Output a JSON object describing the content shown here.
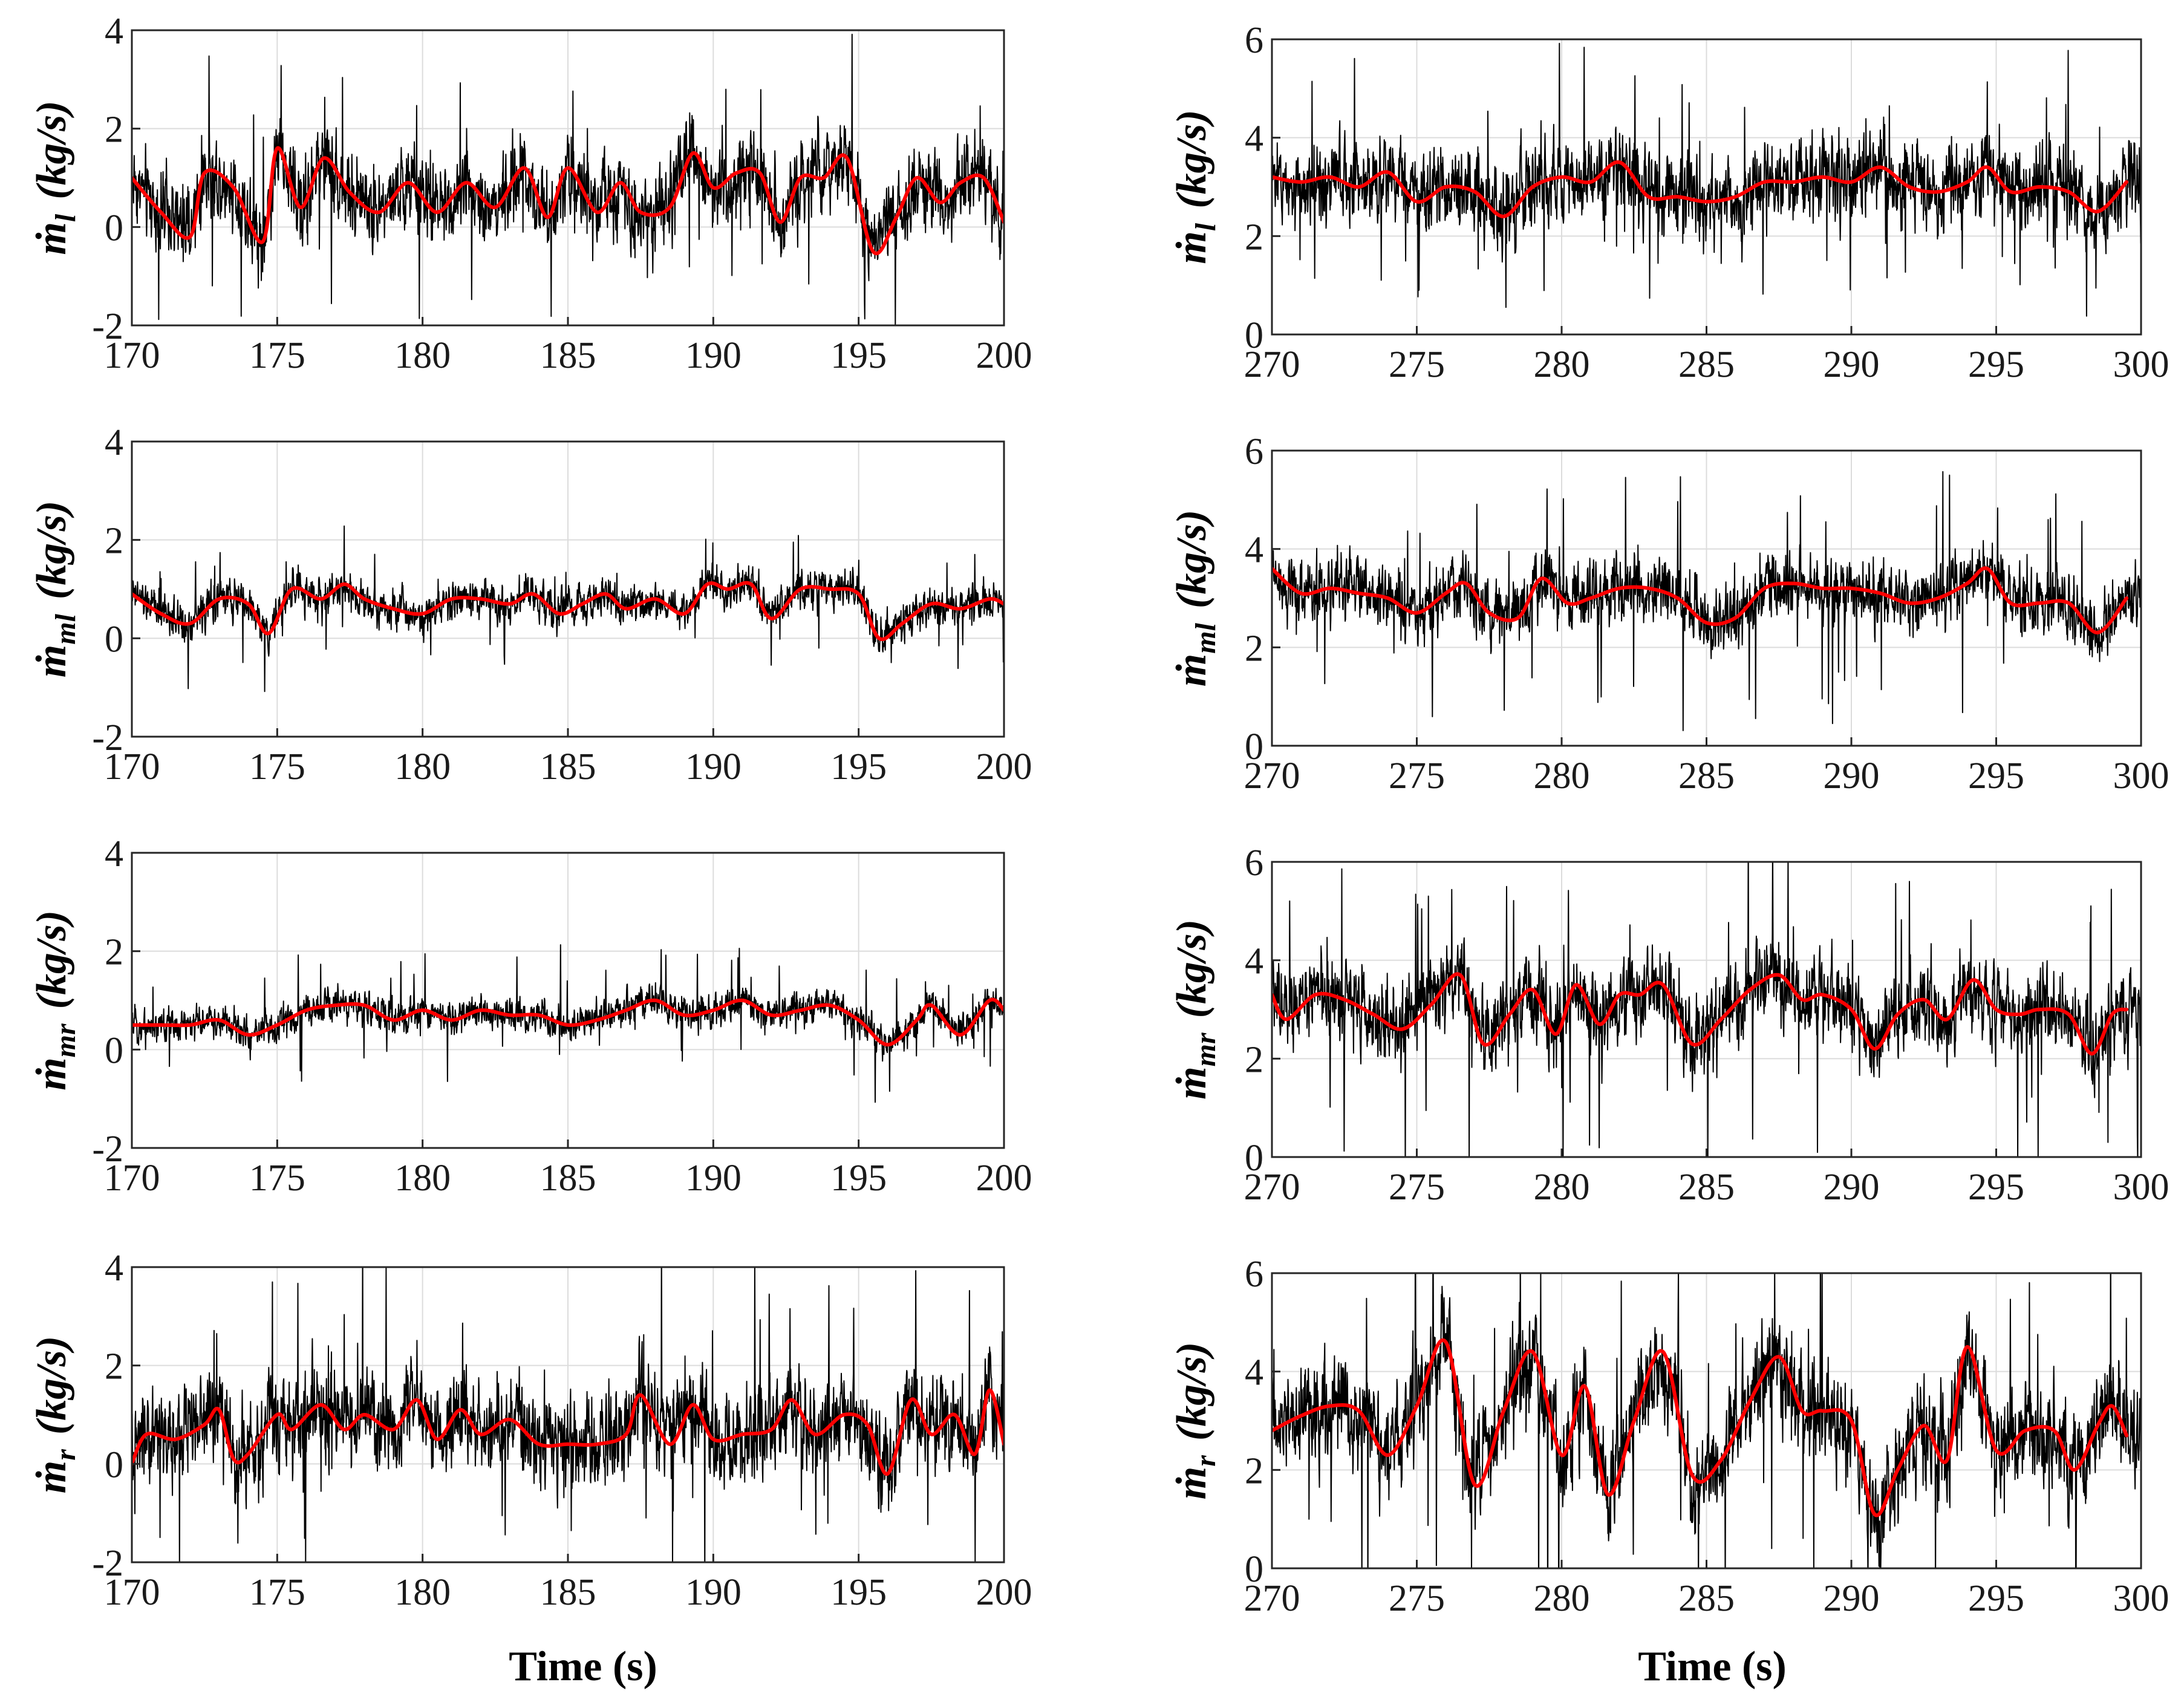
{
  "figure": {
    "xlabel_left": "Time (s)",
    "xlabel_right": "Time (s)"
  },
  "colors": {
    "raw": "#000000",
    "filtered": "#ff0000",
    "grid": "#dcdcdc"
  },
  "chart_data": [
    {
      "type": "line",
      "title": "",
      "ylabel_symbol": "ṁ",
      "ylabel_sub": "l",
      "ylabel_unit": "(kg/s)",
      "xlim": [
        170,
        200
      ],
      "ylim": [
        -2,
        4
      ],
      "xticks": [
        170,
        175,
        180,
        185,
        190,
        195,
        200
      ],
      "yticks": [
        -2,
        0,
        2,
        4
      ],
      "xlabel": "",
      "grid": true,
      "series": [
        {
          "name": "raw",
          "color": "#000000",
          "mean": 0.55,
          "noise": 0.75,
          "spikes": 0.9
        },
        {
          "name": "filtered",
          "color": "#ff0000",
          "x": [
            170,
            171,
            172,
            172.5,
            173.5,
            174.5,
            175,
            175.8,
            176.6,
            177.5,
            178.5,
            179.5,
            180.5,
            181.5,
            182.5,
            183.5,
            184.3,
            185,
            186,
            186.8,
            187.5,
            188.5,
            189.3,
            190,
            190.8,
            191.6,
            192.3,
            193,
            193.8,
            194.6,
            195.5,
            196.3,
            197,
            197.8,
            198.5,
            199.3,
            200
          ],
          "y": [
            1.0,
            0.3,
            -0.2,
            1.1,
            0.8,
            -0.3,
            1.6,
            0.4,
            1.4,
            0.7,
            0.3,
            0.9,
            0.3,
            0.9,
            0.4,
            1.2,
            0.2,
            1.2,
            0.3,
            0.9,
            0.3,
            0.4,
            1.5,
            0.8,
            1.1,
            1.1,
            0.1,
            1.0,
            1.0,
            1.4,
            -0.5,
            0.2,
            1.0,
            0.5,
            0.9,
            1.0,
            0.1
          ]
        }
      ]
    },
    {
      "type": "line",
      "title": "",
      "ylabel_symbol": "ṁ",
      "ylabel_sub": "ml",
      "ylabel_unit": "(kg/s)",
      "xlim": [
        170,
        200
      ],
      "ylim": [
        -2,
        4
      ],
      "xticks": [
        170,
        175,
        180,
        185,
        190,
        195,
        200
      ],
      "yticks": [
        -2,
        0,
        2,
        4
      ],
      "xlabel": "",
      "grid": true,
      "series": [
        {
          "name": "raw",
          "color": "#000000",
          "mean": 0.65,
          "noise": 0.35,
          "spikes": 0.5
        },
        {
          "name": "filtered",
          "color": "#ff0000",
          "x": [
            170,
            171,
            172,
            173,
            174,
            174.7,
            175.5,
            176.5,
            177.3,
            178,
            179,
            180,
            181,
            182,
            183,
            183.8,
            184.7,
            185.5,
            186.3,
            187,
            188,
            189,
            189.8,
            190.5,
            191.3,
            192,
            193,
            194,
            195,
            195.7,
            196.5,
            197.5,
            198.5,
            199.5,
            200
          ],
          "y": [
            0.9,
            0.5,
            0.3,
            0.8,
            0.7,
            0.1,
            1.0,
            0.8,
            1.1,
            0.8,
            0.6,
            0.5,
            0.8,
            0.8,
            0.7,
            0.9,
            0.5,
            0.7,
            0.9,
            0.6,
            0.8,
            0.5,
            1.1,
            1.0,
            1.1,
            0.4,
            1.0,
            1.0,
            0.9,
            0.0,
            0.3,
            0.7,
            0.6,
            0.8,
            0.7
          ]
        }
      ]
    },
    {
      "type": "line",
      "title": "",
      "ylabel_symbol": "ṁ",
      "ylabel_sub": "mr",
      "ylabel_unit": "(kg/s)",
      "xlim": [
        170,
        200
      ],
      "ylim": [
        -2,
        4
      ],
      "xticks": [
        170,
        175,
        180,
        185,
        190,
        195,
        200
      ],
      "yticks": [
        -2,
        0,
        2,
        4
      ],
      "xlabel": "",
      "grid": true,
      "series": [
        {
          "name": "raw",
          "color": "#000000",
          "mean": 0.65,
          "noise": 0.3,
          "spikes": 0.5
        },
        {
          "name": "filtered",
          "color": "#ff0000",
          "x": [
            170,
            171,
            172,
            173,
            174,
            175,
            176,
            177,
            178,
            179,
            180,
            181,
            182,
            183,
            184,
            185,
            186,
            187,
            188,
            189,
            190,
            191,
            192,
            193,
            194,
            195,
            196,
            197,
            197.5,
            198.5,
            199.5,
            200
          ],
          "y": [
            0.5,
            0.5,
            0.5,
            0.6,
            0.3,
            0.5,
            0.8,
            0.9,
            0.9,
            0.6,
            0.8,
            0.6,
            0.8,
            0.7,
            0.7,
            0.5,
            0.6,
            0.8,
            1.0,
            0.7,
            0.8,
            1.0,
            0.7,
            0.8,
            0.9,
            0.6,
            0.1,
            0.6,
            0.9,
            0.3,
            1.0,
            0.8
          ]
        }
      ]
    },
    {
      "type": "line",
      "title": "",
      "ylabel_symbol": "ṁ",
      "ylabel_sub": "r",
      "ylabel_unit": "(kg/s)",
      "xlim": [
        170,
        200
      ],
      "ylim": [
        -2,
        4
      ],
      "xticks": [
        170,
        175,
        180,
        185,
        190,
        195,
        200
      ],
      "yticks": [
        -2,
        0,
        2,
        4
      ],
      "xlabel": "Time (s)",
      "grid": true,
      "series": [
        {
          "name": "raw",
          "color": "#000000",
          "mean": 0.6,
          "noise": 0.85,
          "spikes": 1.2
        },
        {
          "name": "filtered",
          "color": "#ff0000",
          "x": [
            170,
            170.5,
            171.5,
            172.5,
            173,
            173.5,
            174,
            175,
            175.5,
            176.5,
            177.3,
            178,
            179,
            179.8,
            180.5,
            181.3,
            182,
            183,
            184,
            185,
            186,
            187,
            187.5,
            188.5,
            189.3,
            190,
            191,
            192,
            192.7,
            193.5,
            194.5,
            195.3,
            196,
            196.8,
            197.5,
            198.3,
            199,
            199.5,
            200
          ],
          "y": [
            0.0,
            0.6,
            0.5,
            0.8,
            1.1,
            0.1,
            0.2,
            1.0,
            0.7,
            1.2,
            0.7,
            1.0,
            0.7,
            1.3,
            0.5,
            1.1,
            0.6,
            0.9,
            0.4,
            0.4,
            0.4,
            0.6,
            1.4,
            0.4,
            1.2,
            0.5,
            0.6,
            0.7,
            1.3,
            0.6,
            1.0,
            0.8,
            -0.2,
            1.3,
            0.6,
            1.0,
            0.2,
            1.5,
            0.4
          ]
        }
      ]
    },
    {
      "type": "line",
      "title": "",
      "ylabel_symbol": "ṁ",
      "ylabel_sub": "l",
      "ylabel_unit": "(kg/s)",
      "xlim": [
        270,
        300
      ],
      "ylim": [
        0,
        6
      ],
      "xticks": [
        270,
        275,
        280,
        285,
        290,
        295,
        300
      ],
      "yticks": [
        0,
        2,
        4,
        6
      ],
      "xlabel": "",
      "grid": true,
      "series": [
        {
          "name": "raw",
          "color": "#000000",
          "mean": 3.0,
          "noise": 0.75,
          "spikes": 1.0
        },
        {
          "name": "filtered",
          "color": "#ff0000",
          "x": [
            270,
            271,
            272,
            273,
            274,
            275,
            276,
            277,
            278,
            279,
            280,
            281,
            282,
            283,
            284,
            285,
            286,
            287,
            288,
            289,
            290,
            291,
            292,
            293,
            294,
            294.7,
            295.5,
            296.5,
            297.5,
            298.5,
            299.5
          ],
          "y": [
            3.2,
            3.1,
            3.2,
            3.0,
            3.3,
            2.7,
            3.0,
            2.9,
            2.4,
            3.0,
            3.2,
            3.1,
            3.5,
            2.8,
            2.8,
            2.7,
            2.8,
            3.1,
            3.1,
            3.2,
            3.1,
            3.4,
            3.0,
            2.9,
            3.1,
            3.4,
            2.9,
            3.0,
            2.9,
            2.5,
            3.1
          ]
        }
      ]
    },
    {
      "type": "line",
      "title": "",
      "ylabel_symbol": "ṁ",
      "ylabel_sub": "ml",
      "ylabel_unit": "(kg/s)",
      "xlim": [
        270,
        300
      ],
      "ylim": [
        0,
        6
      ],
      "xticks": [
        270,
        275,
        280,
        285,
        290,
        295,
        300
      ],
      "yticks": [
        0,
        2,
        4,
        6
      ],
      "xlabel": "",
      "grid": true,
      "series": [
        {
          "name": "raw",
          "color": "#000000",
          "mean": 3.1,
          "noise": 0.6,
          "spikes": 1.0
        },
        {
          "name": "filtered",
          "color": "#ff0000",
          "x": [
            270,
            271,
            272,
            273,
            274,
            275,
            276,
            276.7,
            277.5,
            278.5,
            279.3,
            280.2,
            281,
            282,
            283,
            284,
            285,
            286,
            287,
            288,
            289,
            290,
            291,
            292,
            293,
            294,
            294.7,
            295.5,
            296.5,
            297.5,
            298.5,
            299.5
          ],
          "y": [
            3.6,
            3.1,
            3.2,
            3.1,
            3.0,
            2.7,
            3.1,
            3.3,
            2.7,
            2.6,
            3.4,
            2.9,
            3.0,
            3.2,
            3.2,
            3.0,
            2.5,
            2.6,
            3.2,
            3.3,
            3.2,
            3.2,
            3.1,
            2.9,
            3.0,
            3.3,
            3.6,
            2.9,
            2.9,
            2.9,
            2.3,
            3.0
          ]
        }
      ]
    },
    {
      "type": "line",
      "title": "",
      "ylabel_symbol": "ṁ",
      "ylabel_sub": "mr",
      "ylabel_unit": "(kg/s)",
      "xlim": [
        270,
        300
      ],
      "ylim": [
        0,
        6
      ],
      "xticks": [
        270,
        275,
        280,
        285,
        290,
        295,
        300
      ],
      "yticks": [
        0,
        2,
        4,
        6
      ],
      "xlabel": "",
      "grid": true,
      "series": [
        {
          "name": "raw",
          "color": "#000000",
          "mean": 3.0,
          "noise": 0.75,
          "spikes": 1.2
        },
        {
          "name": "filtered",
          "color": "#ff0000",
          "x": [
            270,
            270.5,
            271.5,
            272.5,
            273.5,
            274.5,
            275.5,
            276.5,
            277.3,
            278.2,
            279,
            279.8,
            280.5,
            281.3,
            282,
            282.7,
            283.5,
            284.5,
            285.5,
            286.5,
            287.5,
            288.3,
            289,
            290,
            290.8,
            291.6,
            292.5,
            293.3,
            294.2,
            295,
            295.8,
            296.5,
            297.5,
            298.3,
            299,
            299.5
          ],
          "y": [
            3.3,
            2.8,
            3.3,
            3.2,
            2.9,
            2.6,
            3.1,
            3.7,
            2.3,
            2.9,
            3.4,
            2.5,
            3.5,
            2.7,
            3.3,
            3.3,
            3.5,
            2.3,
            2.8,
            3.4,
            3.7,
            3.2,
            3.3,
            3.0,
            2.2,
            2.9,
            3.2,
            2.8,
            3.6,
            3.0,
            2.9,
            3.0,
            2.9,
            2.1,
            2.9,
            3.0
          ]
        }
      ]
    },
    {
      "type": "line",
      "title": "",
      "ylabel_symbol": "ṁ",
      "ylabel_sub": "r",
      "ylabel_unit": "(kg/s)",
      "xlim": [
        270,
        300
      ],
      "ylim": [
        0,
        6
      ],
      "xticks": [
        270,
        275,
        280,
        285,
        290,
        295,
        300
      ],
      "yticks": [
        0,
        2,
        4,
        6
      ],
      "xlabel": "Time (s)",
      "grid": true,
      "series": [
        {
          "name": "raw",
          "color": "#000000",
          "mean": 2.9,
          "noise": 0.95,
          "spikes": 1.5
        },
        {
          "name": "filtered",
          "color": "#ff0000",
          "x": [
            270,
            271,
            272,
            273,
            274,
            275,
            276,
            277,
            278,
            279,
            280,
            280.8,
            281.6,
            282.5,
            283.5,
            284.5,
            285.5,
            286.5,
            287.5,
            288.3,
            289,
            290,
            290.8,
            291.6,
            292.5,
            293.3,
            294,
            295,
            296,
            297,
            297.7,
            298.5,
            299,
            299.5
          ],
          "y": [
            2.8,
            3.1,
            3.3,
            3.2,
            2.3,
            3.3,
            4.6,
            1.7,
            3.2,
            4.4,
            2.3,
            3.7,
            1.5,
            3.0,
            4.4,
            1.9,
            2.2,
            3.4,
            4.3,
            3.2,
            3.2,
            3.0,
            1.1,
            2.0,
            2.9,
            2.2,
            4.5,
            2.4,
            2.8,
            2.8,
            2.0,
            2.9,
            3.3,
            2.7
          ]
        }
      ]
    }
  ]
}
